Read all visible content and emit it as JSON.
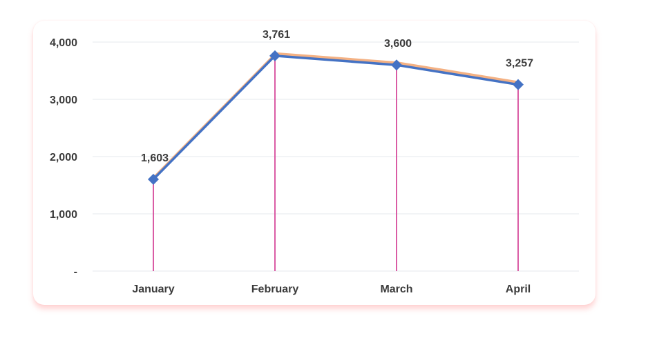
{
  "chart_data": {
    "type": "line",
    "categories": [
      "January",
      "February",
      "March",
      "April"
    ],
    "series": [
      {
        "values": [
          1603,
          3761,
          3600,
          3257
        ]
      }
    ],
    "data_labels": [
      "1,603",
      "3,761",
      "3,600",
      "3,257"
    ],
    "y_ticks": [
      0,
      1000,
      2000,
      3000,
      4000
    ],
    "y_tick_labels": [
      "-",
      "1,000",
      "2,000",
      "3,000",
      "4,000"
    ],
    "ylim": [
      0,
      4000
    ],
    "grid": true,
    "drop_lines": true,
    "marker": "diamond",
    "title": "",
    "xlabel": "",
    "ylabel": ""
  },
  "colors": {
    "line": "#4472C4",
    "line_shadow": "#F4B183",
    "marker": "#4472C4",
    "drop_line": "#D64A9B",
    "grid": "#EEF0F4",
    "text": "#3B3B3B"
  }
}
